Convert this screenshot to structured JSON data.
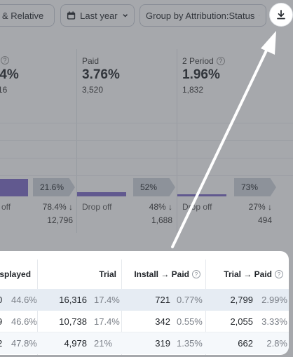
{
  "toolbar": {
    "relative_label": "& Relative",
    "date_label": "Last year",
    "group_label": "Group by Attribution:Status"
  },
  "stats": [
    {
      "label": "",
      "pct": ".4%",
      "count": "16"
    },
    {
      "label": "Paid",
      "pct": "3.76%",
      "count": "3,520"
    },
    {
      "label": "2 Period",
      "pct": "1.96%",
      "count": "1,832"
    }
  ],
  "funnel": {
    "flags": [
      "21.6%",
      "52%",
      "73%"
    ],
    "drop_label": "Drop off",
    "drop_fragment": "off",
    "drops": [
      {
        "pct": "78.4% ↓",
        "count": "12,796"
      },
      {
        "pct": "48% ↓",
        "count": "1,688"
      },
      {
        "pct": "27% ↓",
        "count": "494"
      }
    ]
  },
  "table": {
    "headers": [
      "isplayed",
      "Trial",
      "Install → Paid",
      "Trial → Paid"
    ],
    "rows": [
      {
        "lead": "0",
        "displayed_pct": "44.6%",
        "trial": "16,316",
        "trial_pct": "17.4%",
        "install_paid": "721",
        "install_paid_pct": "0.77%",
        "trial_paid": "2,799",
        "trial_paid_pct": "2.99%"
      },
      {
        "lead": "9",
        "displayed_pct": "46.6%",
        "trial": "10,738",
        "trial_pct": "17.4%",
        "install_paid": "342",
        "install_paid_pct": "0.55%",
        "trial_paid": "2,055",
        "trial_paid_pct": "3.33%"
      },
      {
        "lead": "2",
        "displayed_pct": "47.8%",
        "trial": "4,978",
        "trial_pct": "21%",
        "install_paid": "319",
        "install_paid_pct": "1.35%",
        "trial_paid": "662",
        "trial_paid_pct": "2.8%"
      }
    ]
  },
  "icons": {
    "download": "download-icon",
    "calendar": "calendar-icon",
    "chevron": "chevron-down-icon",
    "help": "help-circle-icon"
  },
  "colors": {
    "bar": "#7b68c8",
    "arrow": "#ffffff",
    "highlight_row": "#e6ecf3"
  }
}
